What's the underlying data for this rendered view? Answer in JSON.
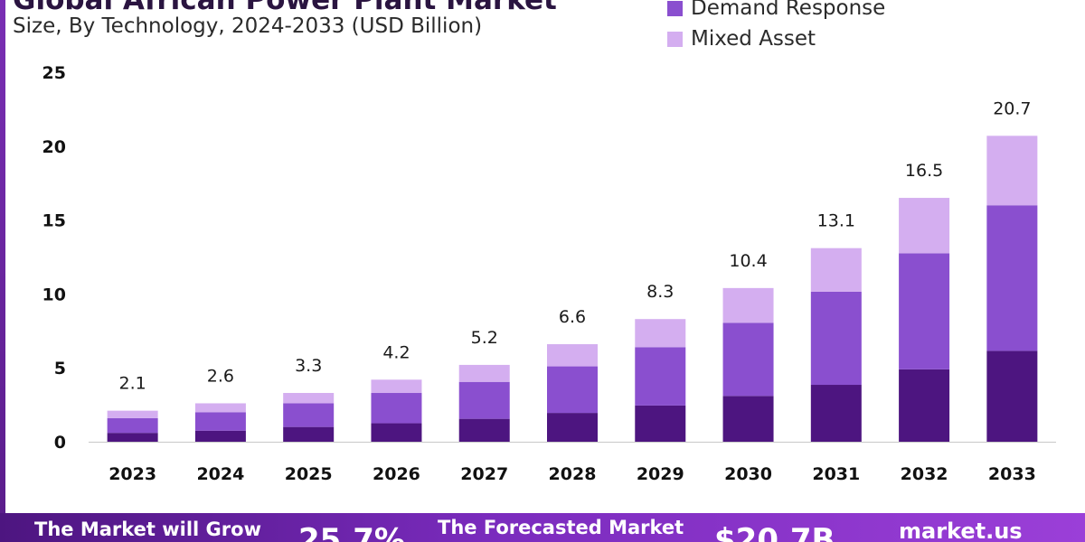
{
  "header": {
    "title": "Global African Power Plant Market",
    "subtitle": "Size, By Technology, 2024-2033 (USD Billion)"
  },
  "legend": [
    {
      "label": "Demand Response",
      "color": "#8a4fcf"
    },
    {
      "label": "Mixed Asset",
      "color": "#d4aef0"
    }
  ],
  "chart_data": {
    "type": "bar",
    "stacked": true,
    "categories": [
      "2023",
      "2024",
      "2025",
      "2026",
      "2027",
      "2028",
      "2029",
      "2030",
      "2031",
      "2032",
      "2033"
    ],
    "totals": [
      2.1,
      2.6,
      3.3,
      4.2,
      5.2,
      6.6,
      8.3,
      10.4,
      13.1,
      16.5,
      20.7
    ],
    "series": [
      {
        "color": "#4d1580",
        "values": [
          0.6,
          0.75,
          1.0,
          1.25,
          1.55,
          1.95,
          2.45,
          3.1,
          3.85,
          4.9,
          6.15
        ]
      },
      {
        "name": "Demand Response",
        "color": "#8a4fcf",
        "values": [
          1.0,
          1.25,
          1.6,
          2.05,
          2.5,
          3.15,
          3.95,
          4.95,
          6.3,
          7.85,
          9.85
        ]
      },
      {
        "name": "Mixed Asset",
        "color": "#d4aef0",
        "values": [
          0.5,
          0.6,
          0.7,
          0.9,
          1.15,
          1.5,
          1.9,
          2.35,
          2.95,
          3.75,
          4.7
        ]
      }
    ],
    "y_ticks": [
      0,
      5,
      10,
      15,
      20,
      25
    ],
    "ylim": [
      0,
      25
    ],
    "grid": false
  },
  "banner": {
    "grow_text": "The Market will Grow",
    "cagr": "25.7%",
    "forecast_text": "The Forecasted Market",
    "forecast_value": "$20.7B",
    "brand": "market.us"
  }
}
